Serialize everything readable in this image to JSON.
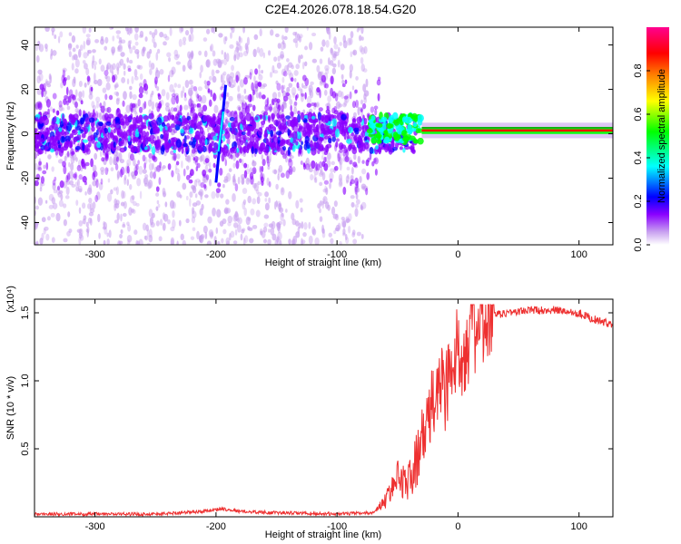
{
  "title": "C2E4.2026.078.18.54.G20",
  "chart_data": [
    {
      "type": "heatmap",
      "xlabel": "Height of straight line (km)",
      "ylabel": "Frequency (Hz)",
      "xlim": [
        -350,
        128
      ],
      "ylim": [
        -50,
        48
      ],
      "xticks": [
        -300,
        -200,
        -100,
        0,
        100
      ],
      "yticks": [
        -40,
        -20,
        0,
        20,
        40
      ],
      "colorbar": {
        "label": "Normalized spectral amplitude",
        "range": [
          0,
          1
        ],
        "ticks": [
          "0.0",
          "0.2",
          "0.4",
          "0.6",
          "0.8"
        ],
        "tick_values": [
          0.0,
          0.2,
          0.4,
          0.6,
          0.8
        ],
        "colormap": [
          "#ffffff",
          "#c8a0f0",
          "#8a00ff",
          "#0000ff",
          "#00ffff",
          "#00ff00",
          "#ffff00",
          "#ff8000",
          "#ff0000",
          "#ff00a0"
        ]
      },
      "features": {
        "noisy_region_x": [
          -350,
          -75
        ],
        "central_band_hz": [
          -8,
          8
        ],
        "spike_x": -196,
        "spike_y_range": [
          -22,
          22
        ],
        "coherent_tone_x": [
          -30,
          128
        ],
        "coherent_tone_hz": 1.5
      }
    },
    {
      "type": "line",
      "xlabel": "Height of straight line (km)",
      "ylabel": "SNR (10 * v/v)",
      "y_multiplier": "(x10⁴)",
      "xlim": [
        -350,
        128
      ],
      "ylim": [
        0,
        1.6
      ],
      "xticks": [
        -300,
        -200,
        -100,
        0,
        100
      ],
      "yticks": [
        0.5,
        1.0,
        1.5
      ],
      "ytick_labels": [
        "0.5",
        "1.0",
        "1.5"
      ],
      "color": "#ee3030",
      "series": [
        {
          "name": "",
          "x": [
            -350,
            -250,
            -210,
            -195,
            -180,
            -150,
            -100,
            -70,
            -60,
            -50,
            -40,
            -30,
            -20,
            -15,
            -10,
            -5,
            0,
            5,
            10,
            20,
            30,
            40,
            60,
            80,
            100,
            110,
            120,
            128
          ],
          "values": [
            0.02,
            0.02,
            0.04,
            0.06,
            0.04,
            0.03,
            0.02,
            0.03,
            0.12,
            0.3,
            0.25,
            0.55,
            0.85,
            1.0,
            0.95,
            1.1,
            1.2,
            1.25,
            1.35,
            1.42,
            1.48,
            1.5,
            1.52,
            1.52,
            1.5,
            1.46,
            1.43,
            1.42
          ]
        }
      ]
    }
  ]
}
